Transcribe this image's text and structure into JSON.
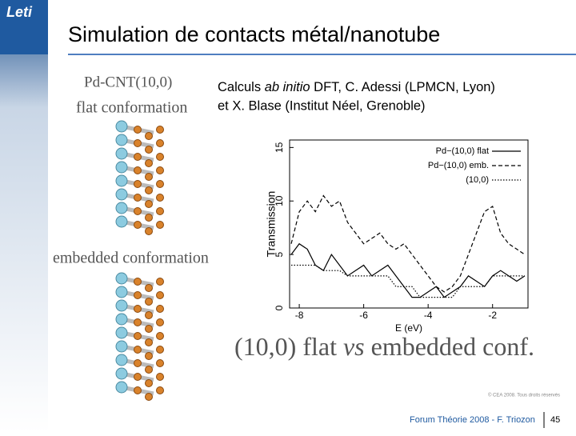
{
  "header": {
    "logo": "Leti",
    "title": "Simulation de contacts métal/nanotube"
  },
  "subtitle": {
    "line1_start": "Calculs ",
    "line1_italic": "ab initio",
    "line1_end": " DFT, C. Adessi (LPMCN, Lyon)",
    "line2": "et X. Blase (Institut Néel, Grenoble)"
  },
  "figures": {
    "label": "Pd-CNT(10,0)",
    "flat": "flat conformation",
    "embedded": "embedded conformation"
  },
  "chart_data": {
    "type": "line",
    "xlabel": "E (eV)",
    "ylabel": "Transmission",
    "x": [
      -8.25,
      -8,
      -7.75,
      -7.5,
      -7.25,
      -7,
      -6.75,
      -6.5,
      -6.25,
      -6,
      -5.75,
      -5.5,
      -5.25,
      -5,
      -4.75,
      -4.5,
      -4.25,
      -4,
      -3.75,
      -3.5,
      -3.25,
      -3,
      -2.75,
      -2.5,
      -2.25,
      -2,
      -1.75,
      -1.5,
      -1.25,
      -1
    ],
    "series": [
      {
        "name": "Pd−(10,0) flat",
        "color": "#000000",
        "style": "solid",
        "values": [
          5,
          6,
          5.5,
          4,
          3.5,
          5,
          4,
          3,
          3.5,
          4,
          3,
          3.5,
          4,
          3,
          2,
          1,
          1,
          1.5,
          2,
          1,
          1.5,
          2,
          3,
          2.5,
          2,
          3,
          3.5,
          3,
          2.5,
          3
        ]
      },
      {
        "name": "Pd−(10,0) emb.",
        "color": "#000000",
        "style": "dashed",
        "values": [
          6,
          9,
          10,
          9,
          10.5,
          9.5,
          10,
          8,
          7,
          6,
          6.5,
          7,
          6,
          5.5,
          6,
          5,
          4,
          3,
          2,
          1.5,
          2,
          3,
          5,
          7,
          9,
          9.5,
          7,
          6,
          5.5,
          5
        ]
      },
      {
        "name": "(10,0)",
        "color": "#000000",
        "style": "dotted",
        "values": [
          4,
          4,
          4,
          4,
          3.5,
          3.5,
          3.5,
          3,
          3,
          3,
          3,
          3,
          3,
          2,
          2,
          2,
          1,
          1,
          1,
          1,
          1,
          2,
          2,
          2,
          2,
          3,
          3,
          3,
          3,
          3
        ]
      }
    ],
    "xlim": [
      -8.3,
      -0.9
    ],
    "ylim": [
      0,
      15.7
    ],
    "xticks": [
      -8,
      -6,
      -4,
      -2
    ],
    "yticks": [
      0,
      5,
      10,
      15
    ],
    "legend": "upper right"
  },
  "caption": {
    "start": "(10,0) flat ",
    "italic": "vs",
    "end": " embedded conf."
  },
  "footer": {
    "copyright": "© CEA 2008. Tous droits réservés",
    "text": "Forum Théorie 2008 - F. Triozon",
    "page": "45"
  }
}
